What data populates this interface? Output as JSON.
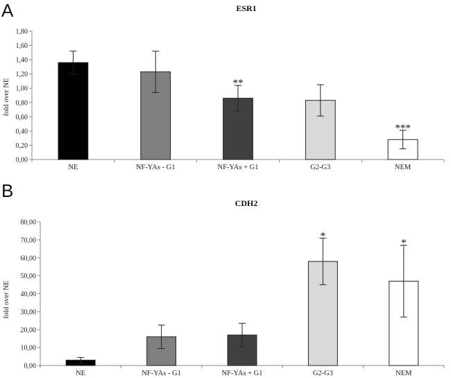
{
  "chart_data": [
    {
      "panel": "A",
      "type": "bar",
      "title": "ESR1",
      "ylabel": "fold over NE",
      "xlabel": "",
      "ylim": [
        0,
        1.8
      ],
      "yticks": [
        "0,00",
        "0,20",
        "0,40",
        "0,60",
        "0,80",
        "1,00",
        "1,20",
        "1,40",
        "1,60",
        "1,80"
      ],
      "categories": [
        "NE",
        "NF-YAs - G1",
        "NF-YAs + G1",
        "G2-G3",
        "NEM"
      ],
      "values": [
        1.36,
        1.23,
        0.86,
        0.83,
        0.28
      ],
      "errors": [
        0.16,
        0.29,
        0.18,
        0.22,
        0.13
      ],
      "significance": [
        "",
        "",
        "**",
        "",
        "***"
      ],
      "colors": [
        "#000000",
        "#808080",
        "#404040",
        "#d9d9d9",
        "#ffffff"
      ]
    },
    {
      "panel": "B",
      "type": "bar",
      "title": "CDH2",
      "ylabel": "fold over NE",
      "xlabel": "",
      "ylim": [
        0,
        80
      ],
      "yticks": [
        "0,00",
        "10,00",
        "20,00",
        "30,00",
        "40,00",
        "50,00",
        "60,00",
        "70,00",
        "80,00"
      ],
      "categories": [
        "NE",
        "NF-YAs - G1",
        "NF-YAs + G1",
        "G2-G3",
        "NEM"
      ],
      "values": [
        3,
        16,
        17,
        58,
        47
      ],
      "errors": [
        1.5,
        6.5,
        6.5,
        13,
        20
      ],
      "significance": [
        "",
        "",
        "",
        "*",
        "*"
      ],
      "colors": [
        "#000000",
        "#808080",
        "#404040",
        "#d9d9d9",
        "#ffffff"
      ]
    }
  ]
}
